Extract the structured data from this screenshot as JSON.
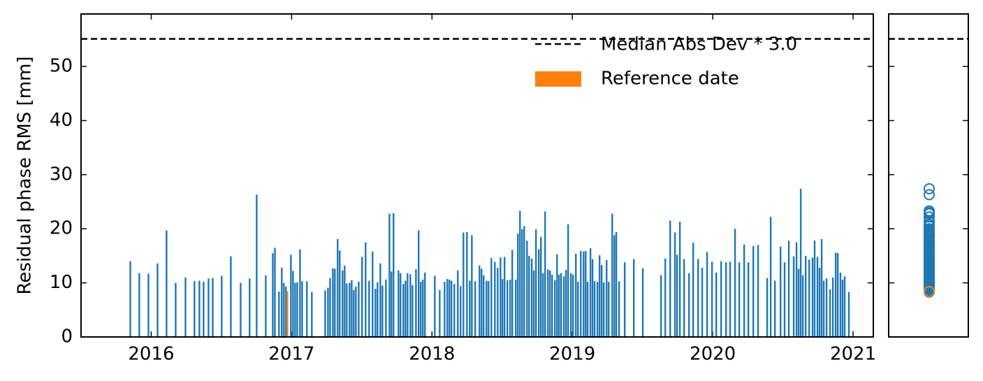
{
  "chart_data": {
    "type": "bar",
    "y_label": "Residual phase RMS [mm]",
    "color": "#1f77b4",
    "x": [
      2015.851,
      2015.915,
      2015.98,
      2016.045,
      2016.109,
      2016.174,
      2016.244,
      2016.308,
      2016.343,
      2016.373,
      2016.408,
      2016.438,
      2016.502,
      2016.567,
      2016.637,
      2016.701,
      2016.751,
      2016.816,
      2016.866,
      2016.881,
      2016.91,
      2016.93,
      2016.945,
      2016.96,
      2016.995,
      2017.01,
      2017.025,
      2017.04,
      2017.06,
      2017.075,
      2017.109,
      2017.144,
      2017.239,
      2017.259,
      2017.274,
      2017.294,
      2017.308,
      2017.328,
      2017.343,
      2017.363,
      2017.378,
      2017.393,
      2017.413,
      2017.428,
      2017.443,
      2017.458,
      2017.478,
      2017.502,
      2017.527,
      2017.552,
      2017.577,
      2017.597,
      2017.612,
      2017.632,
      2017.647,
      2017.672,
      2017.697,
      2017.711,
      2017.726,
      2017.761,
      2017.776,
      2017.796,
      2017.811,
      2017.826,
      2017.846,
      2017.861,
      2017.886,
      2017.905,
      2017.92,
      2017.935,
      2017.95,
      2018.02,
      2018.055,
      2018.09,
      2018.109,
      2018.124,
      2018.139,
      2018.159,
      2018.184,
      2018.204,
      2018.224,
      2018.249,
      2018.269,
      2018.284,
      2018.308,
      2018.338,
      2018.353,
      2018.368,
      2018.388,
      2018.403,
      2018.423,
      2018.448,
      2018.468,
      2018.488,
      2018.502,
      2018.517,
      2018.537,
      2018.557,
      2018.572,
      2018.597,
      2018.612,
      2018.627,
      2018.642,
      2018.657,
      2018.677,
      2018.692,
      2018.711,
      2018.726,
      2018.741,
      2018.761,
      2018.776,
      2018.791,
      2018.806,
      2018.826,
      2018.841,
      2018.856,
      2018.876,
      2018.891,
      2018.905,
      2018.92,
      2018.94,
      2018.955,
      2018.97,
      2018.99,
      2019.005,
      2019.025,
      2019.04,
      2019.06,
      2019.08,
      2019.095,
      2019.109,
      2019.129,
      2019.144,
      2019.159,
      2019.179,
      2019.194,
      2019.209,
      2019.224,
      2019.244,
      2019.259,
      2019.284,
      2019.299,
      2019.313,
      2019.333,
      2019.373,
      2019.438,
      2019.502,
      2019.632,
      2019.662,
      2019.697,
      2019.731,
      2019.746,
      2019.766,
      2019.796,
      2019.831,
      2019.861,
      2019.896,
      2019.925,
      2019.96,
      2019.995,
      2020.025,
      2020.06,
      2020.095,
      2020.124,
      2020.159,
      2020.189,
      2020.224,
      2020.254,
      2020.289,
      2020.323,
      2020.388,
      2020.413,
      2020.443,
      2020.483,
      2020.512,
      2020.542,
      2020.577,
      2020.597,
      2020.612,
      2020.627,
      2020.642,
      2020.662,
      2020.687,
      2020.711,
      2020.726,
      2020.746,
      2020.761,
      2020.776,
      2020.791,
      2020.811,
      2020.836,
      2020.856,
      2020.876,
      2020.891,
      2020.91,
      2020.925,
      2020.94,
      2020.97
    ],
    "values": [
      14,
      11.8,
      11.7,
      13.6,
      19.7,
      10,
      11,
      10.3,
      10.4,
      10.2,
      10.8,
      10.9,
      11.3,
      14.9,
      10,
      10.8,
      26.3,
      11.4,
      15.5,
      16.5,
      8.4,
      12.8,
      10,
      9.3,
      15.2,
      12.2,
      10,
      10.1,
      16.2,
      10.3,
      10.3,
      8.3,
      8.6,
      9.1,
      10.9,
      12.7,
      12.6,
      18.1,
      16,
      12.3,
      13.2,
      9.9,
      10,
      10.5,
      8.7,
      9.3,
      10.2,
      14.8,
      17.5,
      10.4,
      15.8,
      8.9,
      10.1,
      13.6,
      9.5,
      10.6,
      22.8,
      12.1,
      22.9,
      12.3,
      11.8,
      9.8,
      10.4,
      11.8,
      11.6,
      9.6,
      12.5,
      19.7,
      10.2,
      10.6,
      11.9,
      11.3,
      8.7,
      10.2,
      10.7,
      10.6,
      10.4,
      9.8,
      12.3,
      9.4,
      19.3,
      19.4,
      10.4,
      18.8,
      10.3,
      13.2,
      12.6,
      11.4,
      10.4,
      10.3,
      14.6,
      13.9,
      12.8,
      14.7,
      10.7,
      14.8,
      10.5,
      10.6,
      16.1,
      10.6,
      19.1,
      23.3,
      19.9,
      20.5,
      17.8,
      15,
      14.5,
      12.3,
      19.9,
      16.2,
      18.5,
      11.8,
      23.2,
      12.5,
      12.3,
      11.5,
      10.5,
      15.3,
      11.5,
      11.8,
      11.2,
      12.4,
      20.8,
      11.8,
      11.5,
      15.4,
      10.2,
      15.9,
      15.8,
      15.9,
      10.2,
      16.4,
      14.4,
      10.3,
      10.2,
      15.1,
      13.3,
      10.1,
      14.2,
      10.2,
      22.8,
      18.8,
      19.4,
      10.3,
      13.8,
      14.4,
      12.7,
      11.4,
      14.5,
      21.5,
      19.3,
      15.2,
      21.3,
      14.4,
      11.8,
      17.4,
      14.4,
      12.8,
      15.7,
      13.9,
      11.9,
      14,
      13.8,
      13.9,
      20,
      13.8,
      17.1,
      13.8,
      16.8,
      17,
      10.9,
      22.2,
      10.4,
      16.7,
      13.8,
      17.8,
      14.9,
      17.5,
      12.6,
      27.4,
      11.4,
      15,
      14.3,
      14.7,
      17.8,
      14.8,
      12.8,
      18.1,
      10.4,
      10.8,
      8.8,
      11,
      15.6,
      15.5,
      11.9,
      10.6,
      11.2,
      8.3
    ],
    "reference": {
      "name": "Reference date",
      "x": 2016.97,
      "value": 8.4,
      "color": "#ff7f0e"
    },
    "threshold": {
      "name": "Median Abs Dev * 3.0",
      "value": 55.1,
      "color": "#000000"
    },
    "xlim": [
      2015.5,
      2021.144
    ],
    "xticks": [
      2016,
      2017,
      2018,
      2019,
      2020,
      2021
    ],
    "ylim": [
      0,
      59.7
    ],
    "yticks": [
      0,
      10,
      20,
      30,
      40,
      50
    ],
    "marginal": "scatter"
  }
}
